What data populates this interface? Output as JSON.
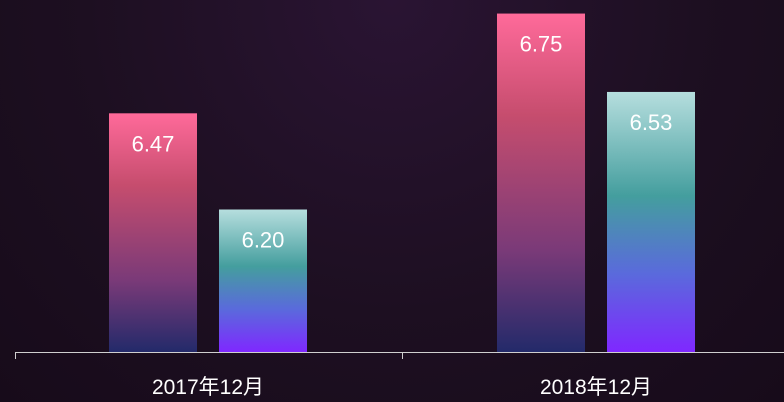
{
  "chart_data": {
    "type": "bar",
    "title": "",
    "xlabel": "",
    "ylabel": "",
    "categories": [
      "2017年12月",
      "2018年12月"
    ],
    "series": [
      {
        "values": [
          6.47,
          6.75
        ]
      },
      {
        "values": [
          6.2,
          6.53
        ]
      }
    ],
    "value_labels": [
      [
        "6.47",
        "6.75"
      ],
      [
        "6.20",
        "6.53"
      ]
    ],
    "ylim": [
      5.8,
      6.76
    ],
    "grid": false,
    "legend": "none",
    "colors": {
      "background": "#1d0f21",
      "axis": "#cfcfcf",
      "label_text": "#ffffff",
      "series_0_gradient": [
        "#ff6a9a",
        "#c64d6e",
        "#7a3a78",
        "#232a6a"
      ],
      "series_1_gradient": [
        "#b6dede",
        "#449e9e",
        "#5a6adc",
        "#7f28ff"
      ]
    }
  }
}
